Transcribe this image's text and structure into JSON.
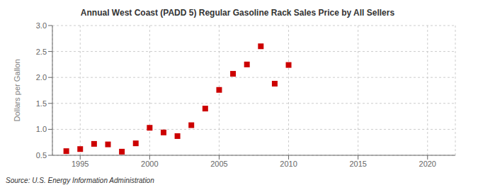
{
  "chart_data": {
    "type": "scatter",
    "title": "Annual West Coast (PADD 5) Regular Gasoline Rack Sales Price by All Sellers",
    "y_label": "Dollars per Gallon",
    "annotations": [
      "Source: U.S. Energy Information Administration"
    ],
    "x": [
      1994,
      1995,
      1996,
      1997,
      1998,
      1999,
      2000,
      2001,
      2002,
      2003,
      2004,
      2005,
      2006,
      2007,
      2008,
      2009,
      2010
    ],
    "values": [
      0.58,
      0.62,
      0.72,
      0.71,
      0.57,
      0.73,
      1.03,
      0.94,
      0.87,
      1.08,
      1.4,
      1.76,
      2.07,
      2.25,
      2.6,
      1.88,
      2.24
    ],
    "color": "#cc0000",
    "marker": "square",
    "xlim": [
      1993,
      2022
    ],
    "xticks": [
      1995,
      2000,
      2005,
      2010,
      2015,
      2020
    ],
    "ylim": [
      0.5,
      3.0
    ],
    "yticks": [
      0.5,
      {
        "value": 1.0,
        "label": "1.0"
      },
      1.5,
      {
        "value": 2.0,
        "label": "2.0"
      },
      2.5,
      {
        "value": 3.0,
        "label": "3.0"
      }
    ],
    "grid": true
  }
}
